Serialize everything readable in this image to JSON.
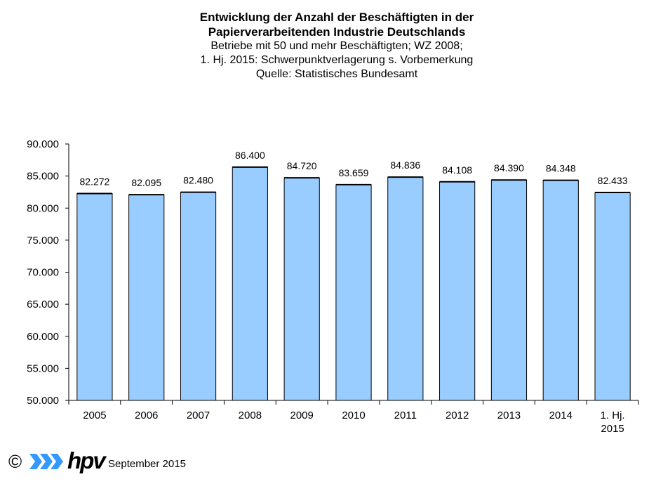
{
  "chart_data": {
    "type": "bar",
    "title": "Entwicklung der Anzahl der Beschäftigten in der",
    "title_line2": "Papierverarbeitenden Industrie Deutschlands",
    "subtitle_lines": [
      "Betriebe mit 50 und mehr Beschäftigten; WZ 2008;",
      "1. Hj. 2015: Schwerpunktverlagerung  s. Vorbemerkung",
      "Quelle:  Statistisches  Bundesamt"
    ],
    "categories": [
      [
        "2005"
      ],
      [
        "2006"
      ],
      [
        "2007"
      ],
      [
        "2008"
      ],
      [
        "2009"
      ],
      [
        "2010"
      ],
      [
        "2011"
      ],
      [
        "2012"
      ],
      [
        "2013"
      ],
      [
        "2014"
      ],
      [
        "1. Hj.",
        "2015"
      ]
    ],
    "values": [
      82272,
      82095,
      82480,
      86400,
      84720,
      83659,
      84836,
      84108,
      84390,
      84348,
      82433
    ],
    "value_labels": [
      "82.272",
      "82.095",
      "82.480",
      "86.400",
      "84.720",
      "83.659",
      "84.836",
      "84.108",
      "84.390",
      "84.348",
      "82.433"
    ],
    "y_ticks": [
      50000,
      55000,
      60000,
      65000,
      70000,
      75000,
      80000,
      85000,
      90000
    ],
    "y_tick_labels": [
      "50.000",
      "55.000",
      "60.000",
      "65.000",
      "70.000",
      "75.000",
      "80.000",
      "85.000",
      "90.000"
    ],
    "ylim": [
      50000,
      90000
    ],
    "xlabel": "",
    "ylabel": "",
    "grid": false,
    "legend": "none",
    "bar_color": "#99ccff",
    "bar_outline_color": "#000000"
  },
  "footer": {
    "copyright_symbol": "©",
    "logo_text": "hpv",
    "logo_color": "#3399ff",
    "date": "September 2015"
  }
}
